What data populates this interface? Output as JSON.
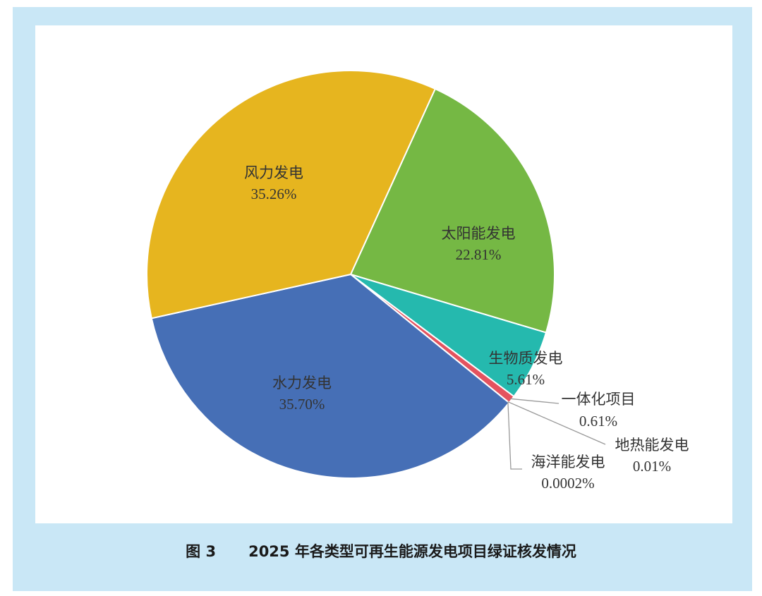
{
  "caption": {
    "figure_no": "图 3",
    "title": "2025 年各类型可再生能源发电项目绿证核发情况"
  },
  "colors": {
    "frame": "#c9e7f6",
    "solar": "#75b844",
    "biomass": "#25b9ae",
    "integrated": "#e4535f",
    "geothermal": "#8a5f9c",
    "ocean": "#2f8ad2",
    "hydro": "#466fb6",
    "wind": "#e6b51f",
    "leader": "#999999"
  },
  "chart_data": {
    "type": "pie",
    "title": "",
    "slices": [
      {
        "name": "太阳能发电",
        "label": "22.81%",
        "value": 22.81,
        "color": "#75b844"
      },
      {
        "name": "生物质发电",
        "label": "5.61%",
        "value": 5.61,
        "color": "#25b9ae"
      },
      {
        "name": "一体化项目",
        "label": "0.61%",
        "value": 0.61,
        "color": "#e4535f"
      },
      {
        "name": "地热能发电",
        "label": "0.01%",
        "value": 0.01,
        "color": "#8a5f9c"
      },
      {
        "name": "海洋能发电",
        "label": "0.0002%",
        "value": 0.0002,
        "color": "#2f8ad2"
      },
      {
        "name": "水力发电",
        "label": "35.70%",
        "value": 35.7,
        "color": "#466fb6"
      },
      {
        "name": "风力发电",
        "label": "35.26%",
        "value": 35.26,
        "color": "#e6b51f"
      }
    ],
    "legend": "none"
  }
}
